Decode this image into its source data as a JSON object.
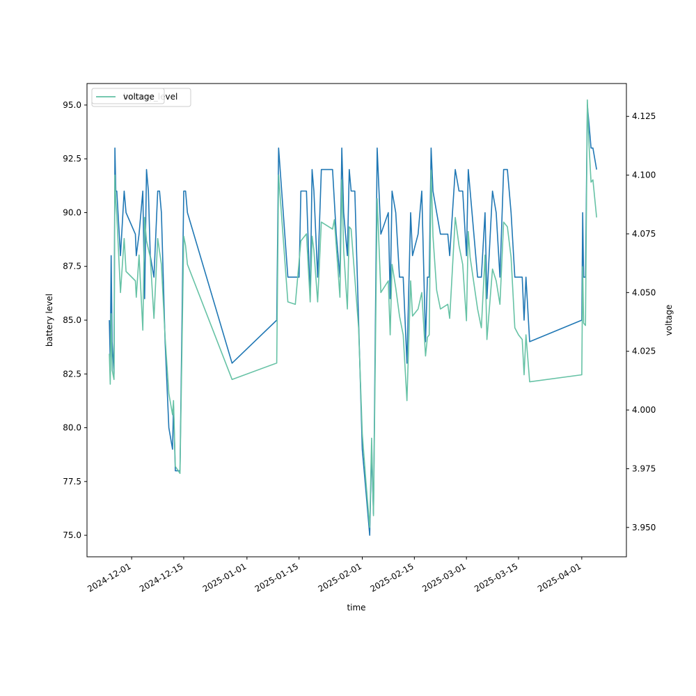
{
  "chart_data": {
    "type": "line",
    "xlabel": "time",
    "ylabel_left": "battery level",
    "ylabel_right": "voltage",
    "x_ticks": [
      "2024-12-01",
      "2024-12-15",
      "2025-01-01",
      "2025-01-15",
      "2025-02-01",
      "2025-02-15",
      "2025-03-01",
      "2025-03-15",
      "2025-04-01"
    ],
    "y_left_ticks": [
      "75.0",
      "77.5",
      "80.0",
      "82.5",
      "85.0",
      "87.5",
      "90.0",
      "92.5",
      "95.0"
    ],
    "y_right_ticks": [
      "3.950",
      "3.975",
      "4.000",
      "4.025",
      "4.050",
      "4.075",
      "4.100",
      "4.125"
    ],
    "x_range": [
      "2024-11-19",
      "2025-04-13"
    ],
    "y_left_range": [
      74.0,
      96.0
    ],
    "y_right_range": [
      3.9375,
      4.139
    ],
    "legend_placement": "top-left",
    "legend_entries": [
      "battery_level",
      "voltage"
    ],
    "series": [
      {
        "name": "battery_level",
        "axis": "left",
        "color": "#1f77b4",
        "points": [
          [
            "2024-11-25",
            85.0
          ],
          [
            "2024-11-25 06:00",
            83.0
          ],
          [
            "2024-11-25 12:00",
            88.0
          ],
          [
            "2024-11-25 18:00",
            84.0
          ],
          [
            "2024-11-26 06:00",
            82.5
          ],
          [
            "2024-11-26 12:00",
            93.0
          ],
          [
            "2024-11-26 18:00",
            91.0
          ],
          [
            "2024-11-27",
            91.0
          ],
          [
            "2024-11-28",
            88.0
          ],
          [
            "2024-11-29",
            91.0
          ],
          [
            "2024-11-29 12:00",
            90.0
          ],
          [
            "2024-12-02",
            89.0
          ],
          [
            "2024-12-02 06:00",
            88.0
          ],
          [
            "2024-12-03",
            89.0
          ],
          [
            "2024-12-04",
            91.0
          ],
          [
            "2024-12-04 12:00",
            86.0
          ],
          [
            "2024-12-05",
            92.0
          ],
          [
            "2024-12-05 12:00",
            91.0
          ],
          [
            "2024-12-06",
            88.0
          ],
          [
            "2024-12-07",
            87.0
          ],
          [
            "2024-12-08",
            91.0
          ],
          [
            "2024-12-08 12:00",
            91.0
          ],
          [
            "2024-12-09",
            90.0
          ],
          [
            "2024-12-10",
            84.0
          ],
          [
            "2024-12-11",
            80.0
          ],
          [
            "2024-12-12",
            79.0
          ],
          [
            "2024-12-12 06:00",
            81.0
          ],
          [
            "2024-12-12 18:00",
            78.0
          ],
          [
            "2024-12-14",
            78.0
          ],
          [
            "2024-12-15",
            91.0
          ],
          [
            "2024-12-15 12:00",
            91.0
          ],
          [
            "2024-12-16",
            90.0
          ],
          [
            "2024-12-28",
            83.0
          ],
          [
            "2025-01-09",
            85.0
          ],
          [
            "2025-01-09 12:00",
            93.0
          ],
          [
            "2025-01-12",
            87.0
          ],
          [
            "2025-01-15",
            87.0
          ],
          [
            "2025-01-15 12:00",
            91.0
          ],
          [
            "2025-01-17",
            91.0
          ],
          [
            "2025-01-18",
            86.0
          ],
          [
            "2025-01-18 12:00",
            92.0
          ],
          [
            "2025-01-19",
            91.0
          ],
          [
            "2025-01-20",
            87.0
          ],
          [
            "2025-01-21",
            92.0
          ],
          [
            "2025-01-24",
            92.0
          ],
          [
            "2025-01-25",
            89.0
          ],
          [
            "2025-01-26",
            87.0
          ],
          [
            "2025-01-26 12:00",
            93.0
          ],
          [
            "2025-01-27",
            90.0
          ],
          [
            "2025-01-28",
            88.0
          ],
          [
            "2025-01-28 12:00",
            92.0
          ],
          [
            "2025-01-29",
            91.0
          ],
          [
            "2025-01-30",
            91.0
          ],
          [
            "2025-01-31",
            85.0
          ],
          [
            "2025-02-01",
            79.0
          ],
          [
            "2025-02-02",
            77.0
          ],
          [
            "2025-02-03",
            75.0
          ],
          [
            "2025-02-03 12:00",
            79.0
          ],
          [
            "2025-02-04",
            76.0
          ],
          [
            "2025-02-05",
            93.0
          ],
          [
            "2025-02-06",
            89.0
          ],
          [
            "2025-02-08",
            90.0
          ],
          [
            "2025-02-08 12:00",
            86.0
          ],
          [
            "2025-02-09",
            91.0
          ],
          [
            "2025-02-10",
            90.0
          ],
          [
            "2025-02-11",
            87.0
          ],
          [
            "2025-02-12",
            87.0
          ],
          [
            "2025-02-13",
            83.0
          ],
          [
            "2025-02-14",
            90.0
          ],
          [
            "2025-02-14 12:00",
            88.0
          ],
          [
            "2025-02-16",
            89.0
          ],
          [
            "2025-02-17",
            91.0
          ],
          [
            "2025-02-18",
            84.0
          ],
          [
            "2025-02-18 12:00",
            87.0
          ],
          [
            "2025-02-19",
            87.0
          ],
          [
            "2025-02-19 12:00",
            93.0
          ],
          [
            "2025-02-20",
            91.0
          ],
          [
            "2025-02-21",
            90.0
          ],
          [
            "2025-02-22",
            89.0
          ],
          [
            "2025-02-24",
            89.0
          ],
          [
            "2025-02-24 12:00",
            88.0
          ],
          [
            "2025-02-26",
            92.0
          ],
          [
            "2025-02-27",
            91.0
          ],
          [
            "2025-02-28",
            91.0
          ],
          [
            "2025-03-01",
            88.0
          ],
          [
            "2025-03-01 12:00",
            92.0
          ],
          [
            "2025-03-02",
            91.0
          ],
          [
            "2025-03-04",
            87.0
          ],
          [
            "2025-03-05",
            87.0
          ],
          [
            "2025-03-06",
            90.0
          ],
          [
            "2025-03-06 12:00",
            86.0
          ],
          [
            "2025-03-08",
            91.0
          ],
          [
            "2025-03-09",
            90.0
          ],
          [
            "2025-03-10",
            87.0
          ],
          [
            "2025-03-11",
            92.0
          ],
          [
            "2025-03-12",
            92.0
          ],
          [
            "2025-03-13",
            90.0
          ],
          [
            "2025-03-14",
            87.0
          ],
          [
            "2025-03-15",
            87.0
          ],
          [
            "2025-03-16",
            87.0
          ],
          [
            "2025-03-16 12:00",
            85.0
          ],
          [
            "2025-03-17",
            87.0
          ],
          [
            "2025-03-18",
            84.0
          ],
          [
            "2025-04-01",
            85.0
          ],
          [
            "2025-04-01 06:00",
            90.0
          ],
          [
            "2025-04-01 12:00",
            87.0
          ],
          [
            "2025-04-02",
            87.0
          ],
          [
            "2025-04-02 12:00",
            95.0
          ],
          [
            "2025-04-03",
            94.0
          ],
          [
            "2025-04-03 12:00",
            93.0
          ],
          [
            "2025-04-04",
            93.0
          ],
          [
            "2025-04-05",
            92.0
          ]
        ]
      },
      {
        "name": "voltage",
        "axis": "right",
        "color": "#66c2a5",
        "points": [
          [
            "2024-11-25",
            4.024
          ],
          [
            "2024-11-25 06:00",
            4.011
          ],
          [
            "2024-11-25 12:00",
            4.041
          ],
          [
            "2024-11-25 18:00",
            4.017
          ],
          [
            "2024-11-26 06:00",
            4.013
          ],
          [
            "2024-11-26 12:00",
            4.1
          ],
          [
            "2024-11-26 18:00",
            4.089
          ],
          [
            "2024-11-27",
            4.083
          ],
          [
            "2024-11-28",
            4.05
          ],
          [
            "2024-11-29",
            4.073
          ],
          [
            "2024-11-29 12:00",
            4.059
          ],
          [
            "2024-12-02",
            4.055
          ],
          [
            "2024-12-02 06:00",
            4.048
          ],
          [
            "2024-12-03",
            4.066
          ],
          [
            "2024-12-04",
            4.034
          ],
          [
            "2024-12-04 12:00",
            4.082
          ],
          [
            "2024-12-05",
            4.072
          ],
          [
            "2024-12-06",
            4.065
          ],
          [
            "2024-12-07",
            4.039
          ],
          [
            "2024-12-08",
            4.073
          ],
          [
            "2024-12-09",
            4.062
          ],
          [
            "2024-12-10",
            4.031
          ],
          [
            "2024-12-11",
            4.007
          ],
          [
            "2024-12-12",
            3.998
          ],
          [
            "2024-12-12 06:00",
            4.004
          ],
          [
            "2024-12-12 18:00",
            3.976
          ],
          [
            "2024-12-14",
            3.973
          ],
          [
            "2024-12-15",
            4.074
          ],
          [
            "2024-12-15 12:00",
            4.07
          ],
          [
            "2024-12-16",
            4.062
          ],
          [
            "2024-12-28",
            4.013
          ],
          [
            "2025-01-09",
            4.02
          ],
          [
            "2025-01-09 12:00",
            4.1
          ],
          [
            "2025-01-12",
            4.046
          ],
          [
            "2025-01-14",
            4.045
          ],
          [
            "2025-01-15 12:00",
            4.072
          ],
          [
            "2025-01-17",
            4.075
          ],
          [
            "2025-01-18",
            4.046
          ],
          [
            "2025-01-18 12:00",
            4.074
          ],
          [
            "2025-01-19",
            4.068
          ],
          [
            "2025-01-20",
            4.046
          ],
          [
            "2025-01-21",
            4.08
          ],
          [
            "2025-01-24",
            4.077
          ],
          [
            "2025-01-24 12:00",
            4.081
          ],
          [
            "2025-01-25",
            4.07
          ],
          [
            "2025-01-26",
            4.048
          ],
          [
            "2025-01-26 12:00",
            4.098
          ],
          [
            "2025-01-27",
            4.068
          ],
          [
            "2025-01-28",
            4.043
          ],
          [
            "2025-01-28 12:00",
            4.078
          ],
          [
            "2025-01-29",
            4.077
          ],
          [
            "2025-01-31",
            4.035
          ],
          [
            "2025-02-01",
            3.99
          ],
          [
            "2025-02-02",
            3.969
          ],
          [
            "2025-02-03",
            3.95
          ],
          [
            "2025-02-03 12:00",
            3.988
          ],
          [
            "2025-02-04",
            3.955
          ],
          [
            "2025-02-05",
            4.09
          ],
          [
            "2025-02-06",
            4.05
          ],
          [
            "2025-02-08",
            4.055
          ],
          [
            "2025-02-08 12:00",
            4.032
          ],
          [
            "2025-02-09",
            4.062
          ],
          [
            "2025-02-10",
            4.052
          ],
          [
            "2025-02-11",
            4.04
          ],
          [
            "2025-02-12",
            4.032
          ],
          [
            "2025-02-13",
            4.004
          ],
          [
            "2025-02-14",
            4.055
          ],
          [
            "2025-02-14 12:00",
            4.04
          ],
          [
            "2025-02-16",
            4.043
          ],
          [
            "2025-02-17",
            4.05
          ],
          [
            "2025-02-18",
            4.023
          ],
          [
            "2025-02-18 12:00",
            4.031
          ],
          [
            "2025-02-19",
            4.032
          ],
          [
            "2025-02-19 12:00",
            4.102
          ],
          [
            "2025-02-20",
            4.074
          ],
          [
            "2025-02-21",
            4.051
          ],
          [
            "2025-02-22",
            4.043
          ],
          [
            "2025-02-24",
            4.045
          ],
          [
            "2025-02-24 12:00",
            4.039
          ],
          [
            "2025-02-26",
            4.082
          ],
          [
            "2025-02-27",
            4.07
          ],
          [
            "2025-02-28",
            4.062
          ],
          [
            "2025-03-01",
            4.038
          ],
          [
            "2025-03-01 12:00",
            4.076
          ],
          [
            "2025-03-02",
            4.065
          ],
          [
            "2025-03-04",
            4.043
          ],
          [
            "2025-03-05",
            4.035
          ],
          [
            "2025-03-06",
            4.066
          ],
          [
            "2025-03-06 12:00",
            4.03
          ],
          [
            "2025-03-08",
            4.06
          ],
          [
            "2025-03-09",
            4.055
          ],
          [
            "2025-03-10",
            4.045
          ],
          [
            "2025-03-11",
            4.08
          ],
          [
            "2025-03-12",
            4.078
          ],
          [
            "2025-03-13",
            4.065
          ],
          [
            "2025-03-14",
            4.035
          ],
          [
            "2025-03-15",
            4.032
          ],
          [
            "2025-03-16",
            4.03
          ],
          [
            "2025-03-16 12:00",
            4.015
          ],
          [
            "2025-03-17",
            4.032
          ],
          [
            "2025-03-18",
            4.012
          ],
          [
            "2025-04-01",
            4.015
          ],
          [
            "2025-04-01 06:00",
            4.061
          ],
          [
            "2025-04-01 12:00",
            4.037
          ],
          [
            "2025-04-02",
            4.036
          ],
          [
            "2025-04-02 12:00",
            4.132
          ],
          [
            "2025-04-03",
            4.111
          ],
          [
            "2025-04-03 12:00",
            4.097
          ],
          [
            "2025-04-04",
            4.098
          ],
          [
            "2025-04-05",
            4.082
          ]
        ]
      }
    ]
  }
}
